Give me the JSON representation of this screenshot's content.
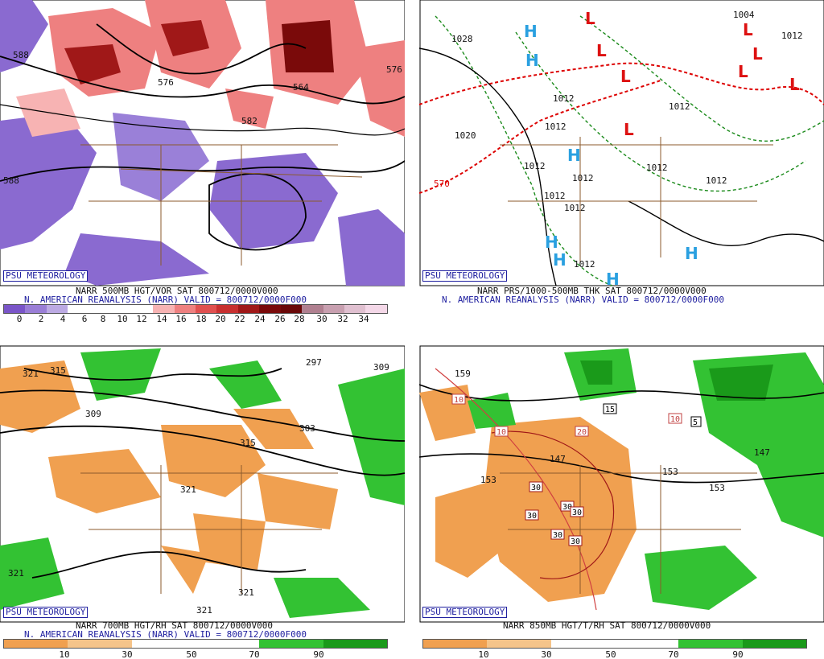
{
  "branding": "PSU METEOROLOGY",
  "subtitle": "N. AMERICAN REANALYSIS (NARR) VALID = 800712/0000F000",
  "panels": [
    {
      "id": "top-left",
      "title": "NARR 500MB HGT/VOR SAT 800712/0000V000",
      "subtitle": "N. AMERICAN REANALYSIS (NARR) VALID = 800712/0000F000",
      "colorbar": {
        "ticks": [
          "0",
          "2",
          "4",
          "6",
          "8",
          "10",
          "12",
          "14",
          "16",
          "18",
          "20",
          "22",
          "24",
          "26",
          "28",
          "30",
          "32",
          "34"
        ],
        "colors": [
          "#7a55c8",
          "#9a7ed6",
          "#bcaae3",
          "#fff",
          "#fff",
          "#fff",
          "#fff",
          "#f7b3b3",
          "#ee8080",
          "#e05050",
          "#c83030",
          "#a01818",
          "#7a0a0a",
          "#6a0808",
          "#b08090",
          "#c8a0b0",
          "#e0c0d0",
          "#f4d8e8"
        ]
      },
      "labels": [
        "588",
        "576",
        "564",
        "576",
        "588",
        "582",
        "576",
        "588"
      ]
    },
    {
      "id": "top-right",
      "title": "NARR PRS/1000-500MB THK SAT 800712/0000V000",
      "subtitle": "N. AMERICAN REANALYSIS (NARR) VALID = 800712/0000F000",
      "labels": [
        "1028",
        "1012",
        "1012",
        "1012",
        "1012",
        "1020",
        "1012",
        "1012",
        "1012",
        "1012",
        "1012",
        "1004",
        "1012",
        "1012",
        "570",
        "1012",
        "1020",
        "1004"
      ],
      "highs": [
        "H",
        "H",
        "H",
        "H",
        "H",
        "H",
        "H"
      ],
      "lows": [
        "L",
        "L",
        "L",
        "L",
        "L",
        "L",
        "L",
        "L"
      ]
    },
    {
      "id": "bottom-left",
      "title": "NARR 700MB HGT/RH SAT 800712/0000V000",
      "subtitle": "N. AMERICAN REANALYSIS (NARR) VALID = 800712/0000F000",
      "colorbar": {
        "ticks": [
          "10",
          "30",
          "50",
          "70",
          "90"
        ],
        "colors": [
          "#f0a050",
          "#f5c48a",
          "#fff",
          "#fff",
          "#33c233",
          "#1a9a1a"
        ]
      },
      "labels": [
        "321",
        "315",
        "309",
        "303",
        "297",
        "309",
        "315",
        "321",
        "321",
        "321",
        "321",
        "297",
        "303"
      ]
    },
    {
      "id": "bottom-right",
      "title": "NARR 850MB HGT/T/RH SAT 800712/0000V000",
      "colorbar": {
        "ticks": [
          "10",
          "30",
          "50",
          "70",
          "90"
        ],
        "colors": [
          "#f0a050",
          "#f5c48a",
          "#fff",
          "#fff",
          "#33c233",
          "#1a9a1a"
        ]
      },
      "labels": [
        "159",
        "153",
        "147",
        "153",
        "147",
        "153",
        "15",
        "10",
        "10",
        "20",
        "10",
        "5",
        "30",
        "30",
        "30",
        "30",
        "30",
        "30",
        "30",
        "10"
      ]
    }
  ]
}
